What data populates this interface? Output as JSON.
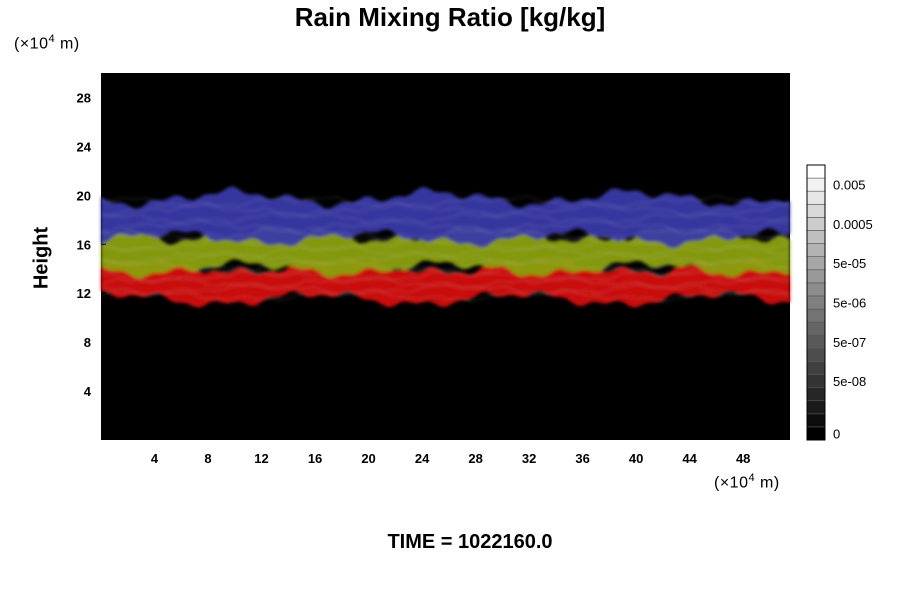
{
  "chart_data": {
    "type": "heatmap",
    "title": "Rain Mixing Ratio [kg/kg]",
    "xlabel": "",
    "ylabel": "Height",
    "x_unit_prefix": "(×10",
    "x_unit_exp": "4",
    "x_unit_suffix": " m)",
    "y_unit_prefix": "(×10",
    "y_unit_exp": "4",
    "y_unit_suffix": " m)",
    "xlim": [
      0,
      51.5
    ],
    "ylim": [
      0,
      30
    ],
    "x_ticks": [
      4,
      8,
      12,
      16,
      20,
      24,
      28,
      32,
      36,
      40,
      44,
      48
    ],
    "x_tick_labels": [
      "4",
      "8",
      "12",
      "16",
      "20",
      "24",
      "28",
      "32",
      "36",
      "40",
      "44",
      "48"
    ],
    "y_ticks": [
      4,
      8,
      12,
      16,
      20,
      24,
      28
    ],
    "y_tick_labels": [
      "4",
      "8",
      "12",
      "16",
      "20",
      "24",
      "28"
    ],
    "background_color": "#000000",
    "layers": [
      {
        "color": "#d41010",
        "y_bottom": 11.5,
        "y_top": 14.2
      },
      {
        "color": "#8aa010",
        "y_bottom": 14.0,
        "y_top": 16.8
      },
      {
        "color": "#3a3aa8",
        "y_bottom": 16.5,
        "y_top": 19.8
      }
    ],
    "colorbar": {
      "levels": 21,
      "labels": [
        "0.005",
        "0.0005",
        "5e-05",
        "5e-06",
        "5e-07",
        "5e-08",
        "0"
      ],
      "label_levels": [
        19,
        16,
        13,
        10,
        7,
        4,
        0
      ]
    },
    "footer": "TIME = 1022160.0"
  }
}
